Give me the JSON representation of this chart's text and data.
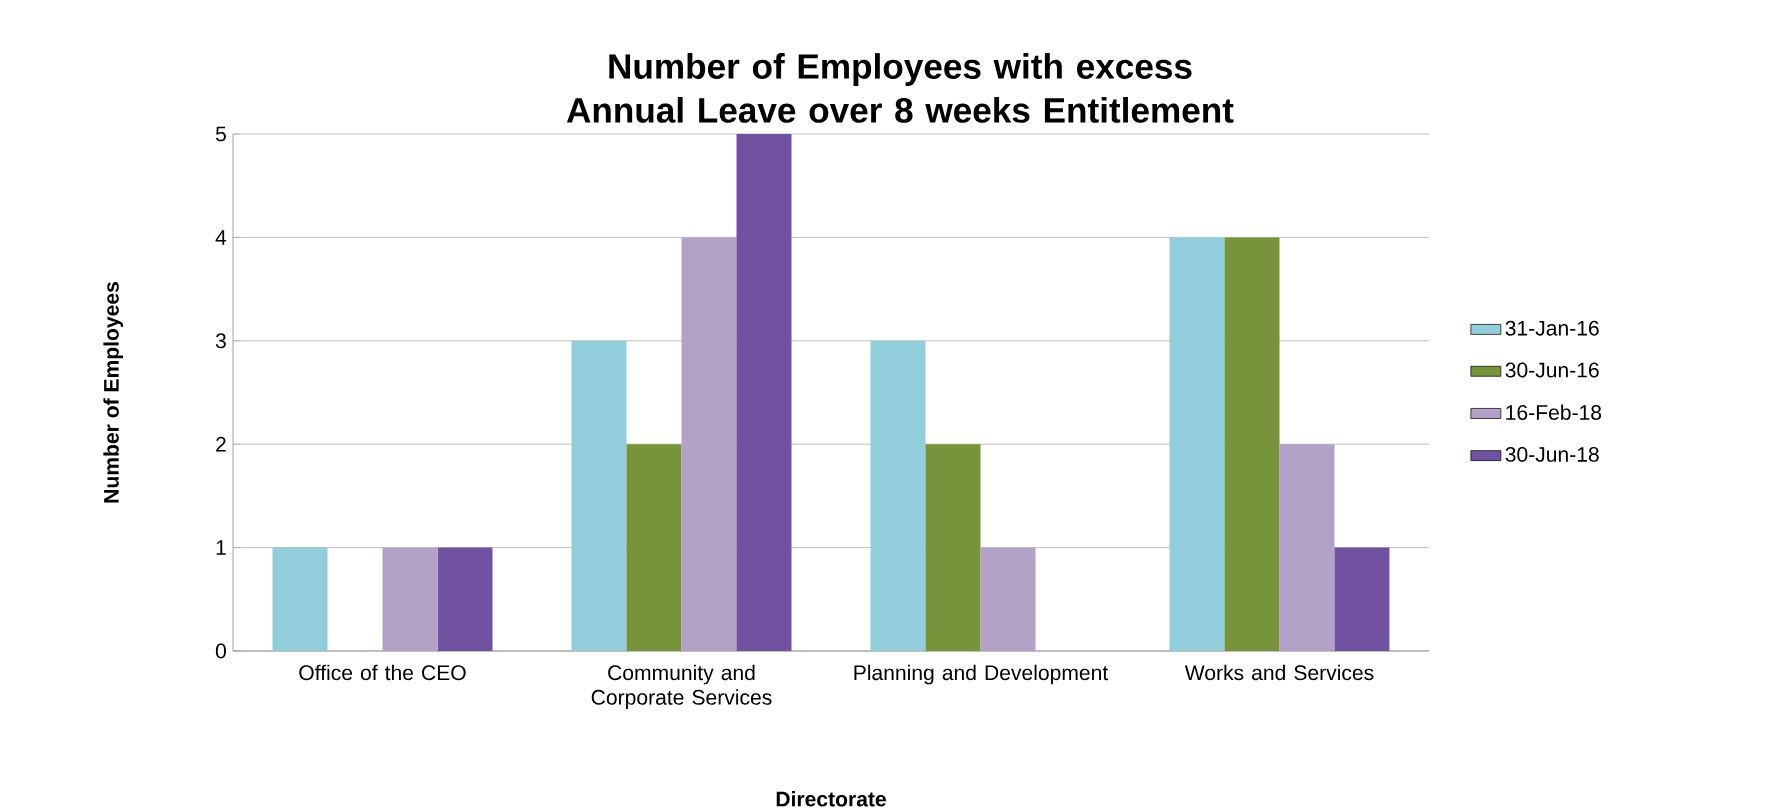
{
  "chart_data": {
    "type": "bar",
    "title": "Number of Employees with excess Annual Leave over 8 weeks Entitlement",
    "xlabel": "Directorate",
    "ylabel": "Number of Employees",
    "categories": [
      "Office of the CEO",
      "Community and Corporate Services",
      "Planning and Development",
      "Works and Services"
    ],
    "series": [
      {
        "name": "31-Jan-16",
        "color": "#92cddc",
        "values": [
          1,
          3,
          3,
          4
        ]
      },
      {
        "name": "30-Jun-16",
        "color": "#77933c",
        "values": [
          0,
          2,
          2,
          4
        ]
      },
      {
        "name": "16-Feb-18",
        "color": "#b3a2c7",
        "values": [
          1,
          4,
          1,
          2
        ]
      },
      {
        "name": "30-Jun-18",
        "color": "#7052a0",
        "values": [
          1,
          5,
          0,
          1
        ]
      }
    ],
    "ylim": [
      0,
      5
    ],
    "yticks": [
      0,
      1,
      2,
      3,
      4,
      5
    ],
    "grid": "y",
    "legend": "right"
  }
}
